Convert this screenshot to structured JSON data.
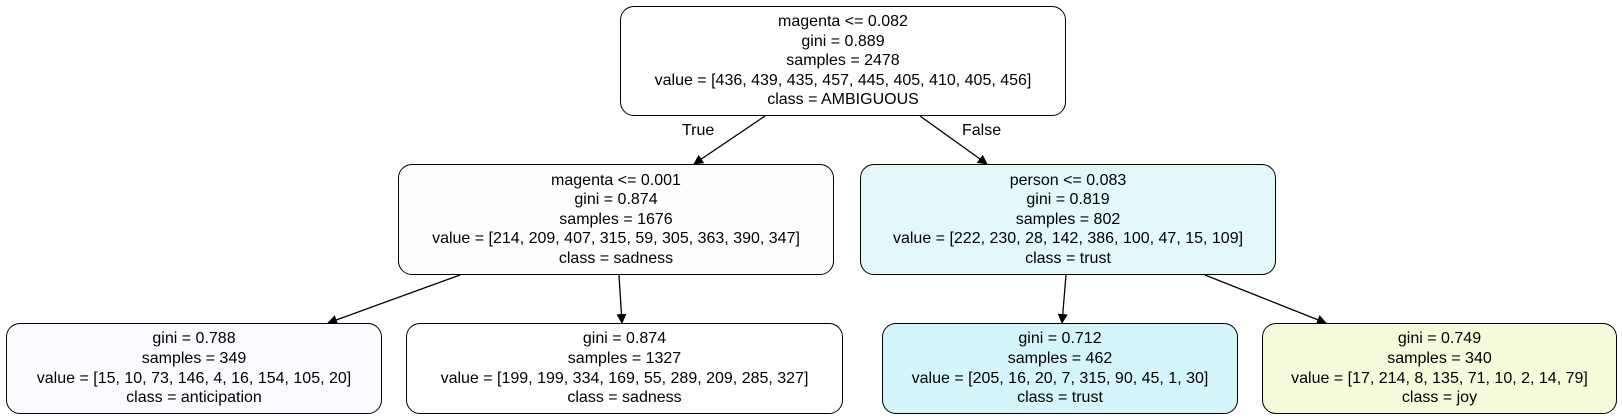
{
  "colors": {
    "root": "#ffffff",
    "sadness": "#fefeff",
    "trust_split": "#e2f8fb",
    "anticipation": "#fbfbff",
    "sadness_leaf": "#ffffff",
    "trust_leaf": "#d4f5f9",
    "joy": "#f5fbda"
  },
  "edge_labels": {
    "true": "True",
    "false": "False"
  },
  "nodes": [
    {
      "id": "node-0",
      "split": "magenta <= 0.082",
      "gini": "gini = 0.889",
      "samples": "samples = 2478",
      "value": "value = [436, 439, 435, 457, 445, 405, 410, 405, 456]",
      "class": "class = AMBIGUOUS",
      "fill": "#ffffff"
    },
    {
      "id": "node-1",
      "split": "magenta <= 0.001",
      "gini": "gini = 0.874",
      "samples": "samples = 1676",
      "value": "value = [214, 209, 407, 315, 59, 305, 363, 390, 347]",
      "class": "class = sadness",
      "fill": "#fefeff"
    },
    {
      "id": "node-2",
      "split": "person <= 0.083",
      "gini": "gini = 0.819",
      "samples": "samples = 802",
      "value": "value = [222, 230, 28, 142, 386, 100, 47, 15, 109]",
      "class": "class = trust",
      "fill": "#e2f8fb"
    },
    {
      "id": "node-3",
      "gini": "gini = 0.788",
      "samples": "samples = 349",
      "value": "value = [15, 10, 73, 146, 4, 16, 154, 105, 20]",
      "class": "class = anticipation",
      "fill": "#fbfbff"
    },
    {
      "id": "node-4",
      "gini": "gini = 0.874",
      "samples": "samples = 1327",
      "value": "value = [199, 199, 334, 169, 55, 289, 209, 285, 327]",
      "class": "class = sadness",
      "fill": "#ffffff"
    },
    {
      "id": "node-5",
      "gini": "gini = 0.712",
      "samples": "samples = 462",
      "value": "value = [205, 16, 20, 7, 315, 90, 45, 1, 30]",
      "class": "class = trust",
      "fill": "#d4f5f9"
    },
    {
      "id": "node-6",
      "gini": "gini = 0.749",
      "samples": "samples = 340",
      "value": "value = [17, 214, 8, 135, 71, 10, 2, 14, 79]",
      "class": "class = joy",
      "fill": "#f5fbda"
    }
  ]
}
